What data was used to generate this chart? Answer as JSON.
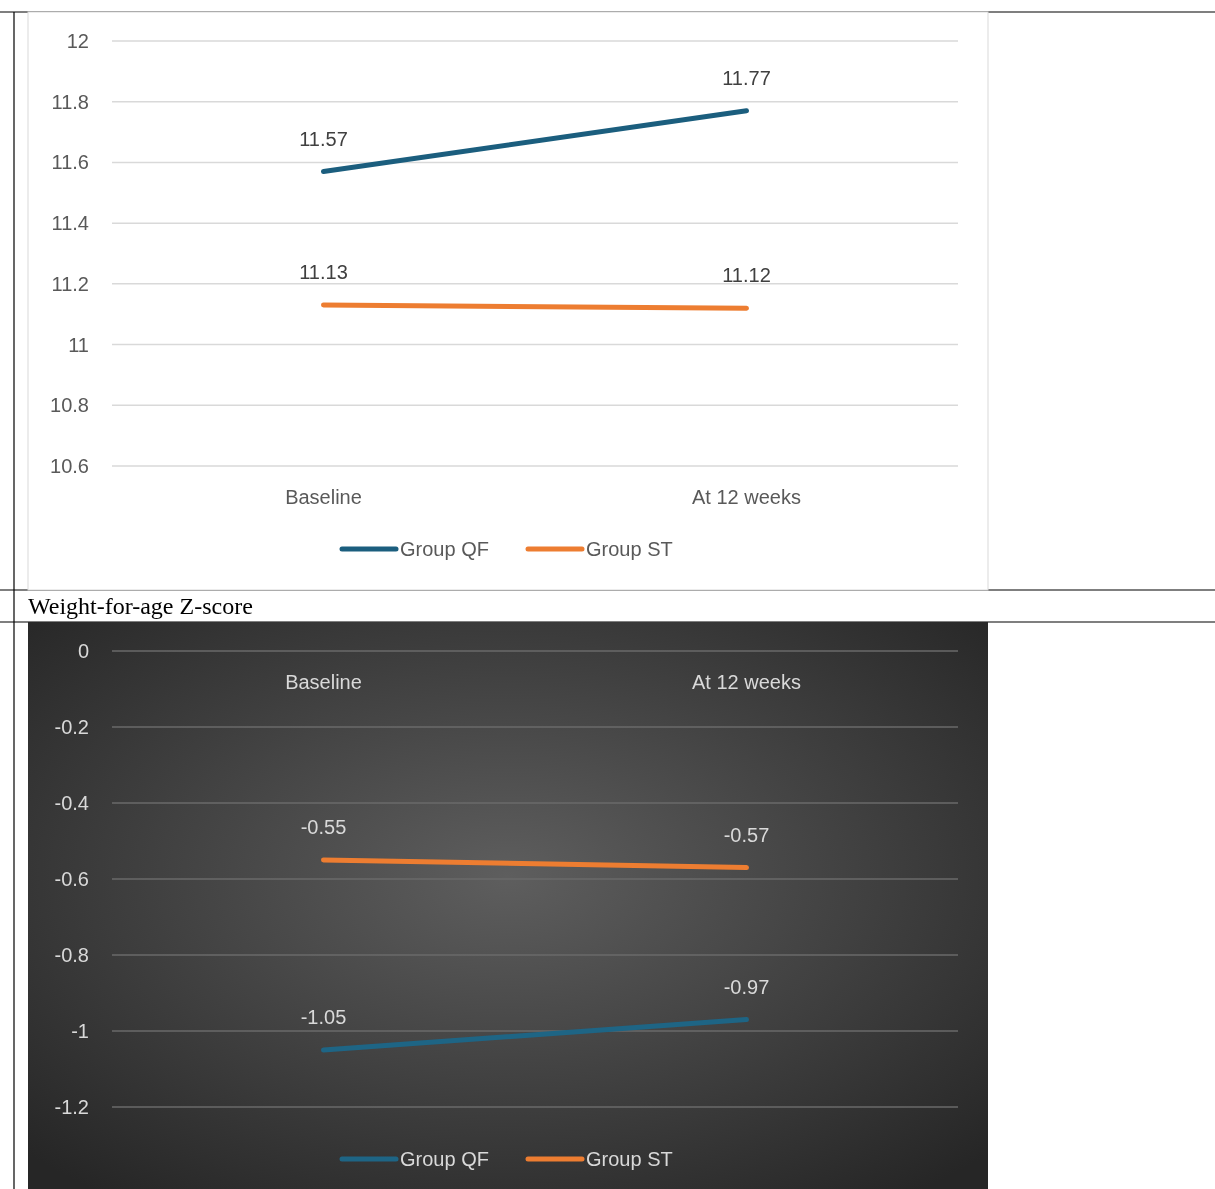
{
  "chart_data": [
    {
      "type": "line",
      "categories": [
        "Baseline",
        "At 12 weeks"
      ],
      "series": [
        {
          "name": "Group QF",
          "color": "#1b5e7e",
          "values": [
            11.57,
            11.77
          ]
        },
        {
          "name": "Group ST",
          "color": "#ed7d31",
          "values": [
            11.13,
            11.12
          ]
        }
      ],
      "ylim": [
        10.6,
        12
      ],
      "yticks": [
        10.6,
        10.8,
        11,
        11.2,
        11.4,
        11.6,
        11.8,
        12
      ],
      "grid": "y",
      "legend": "bottom",
      "data_labels": true
    },
    {
      "type": "line",
      "title": "Weight-for-age Z-score",
      "categories": [
        "Baseline",
        "At 12 weeks"
      ],
      "series": [
        {
          "name": "Group QF",
          "color": "#1e6585",
          "values": [
            -1.05,
            -0.97
          ]
        },
        {
          "name": "Group ST",
          "color": "#ed7d31",
          "values": [
            -0.55,
            -0.57
          ]
        }
      ],
      "ylim": [
        -1.2,
        0
      ],
      "yticks": [
        0,
        -0.2,
        -0.4,
        -0.6,
        -0.8,
        -1,
        -1.2
      ],
      "grid": "y",
      "legend": "bottom",
      "data_labels": true
    }
  ]
}
